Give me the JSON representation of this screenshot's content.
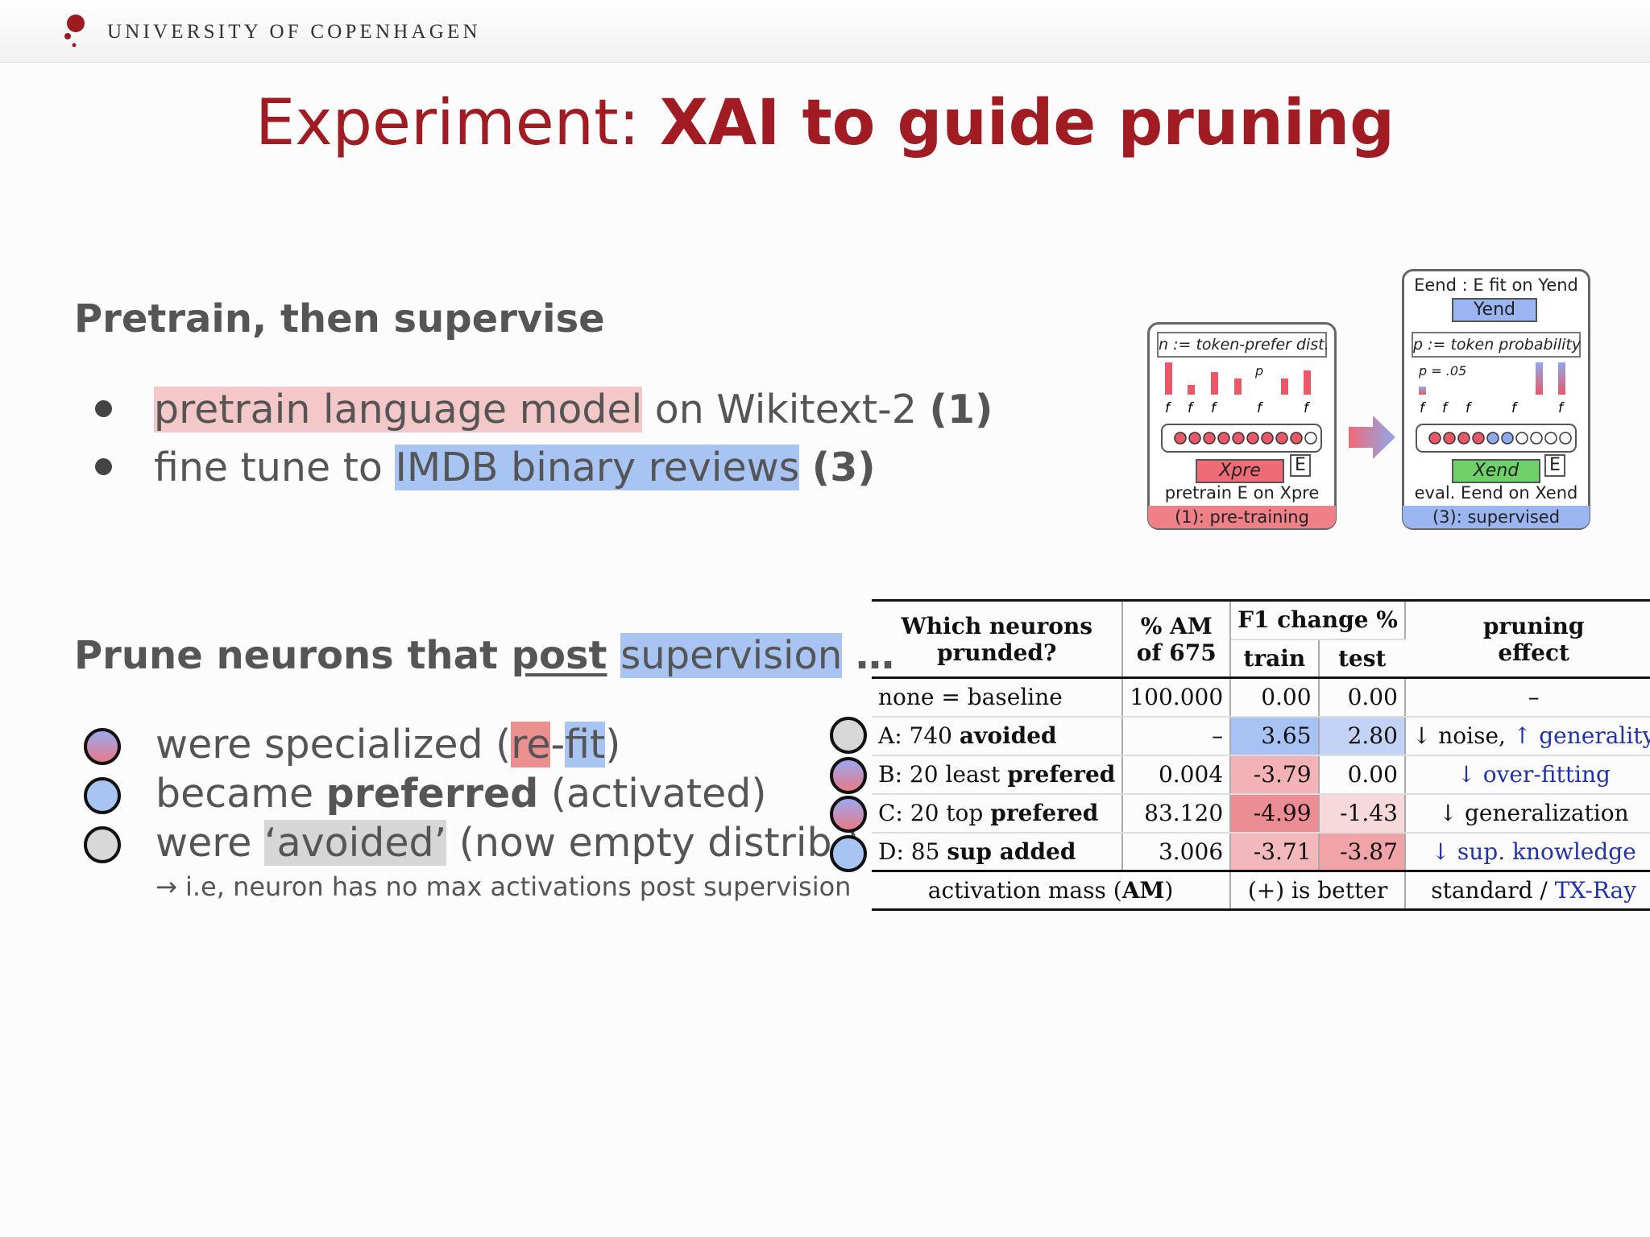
{
  "header": {
    "university": "UNIVERSITY OF COPENHAGEN"
  },
  "title": {
    "plain": "Experiment: ",
    "bold": "XAI to guide pruning"
  },
  "section1": {
    "heading": "Pretrain, then supervise",
    "bullets": [
      {
        "hl": "pretrain language model",
        "rest": " on Wikitext-2 ",
        "ref": "(1)"
      },
      {
        "pre": "fine tune to ",
        "hl": "IMDB binary reviews",
        "rest": " ",
        "ref": "(3)"
      }
    ]
  },
  "section2": {
    "heading_a": "Prune neurons that ",
    "heading_u": "post",
    "heading_sp": " ",
    "heading_hl": "supervision",
    "heading_end": " …",
    "items": [
      {
        "a": "were specialized (",
        "re": "re",
        "dash": "-",
        "fit": "fit",
        "b": ")"
      },
      {
        "a": "became ",
        "bold": "preferred",
        "b": " (activated)"
      },
      {
        "a": "were ",
        "hl": "‘avoided’",
        "b": " (now empty distrib.)"
      }
    ],
    "note": "→ i.e, neuron has no max activations post supervision"
  },
  "diagram": {
    "left": {
      "head": "n := token-prefer dist.",
      "pk": "p",
      "f_labels": [
        "f",
        "f",
        "f",
        "f",
        "f"
      ],
      "x": "Xpre",
      "e": "E",
      "caption": "pretrain E on Xpre",
      "footer": "(1): pre-training"
    },
    "right": {
      "top": "Eend : E fit on Yend",
      "yend": "Yend",
      "head": "p := token probability",
      "p1": "p = .05",
      "f_labels": [
        "f",
        "f",
        "f",
        "f",
        "f"
      ],
      "x": "Xend",
      "e": "E",
      "caption": "eval. Eend on Xend",
      "footer": "(3): supervised"
    }
  },
  "table": {
    "headers": {
      "c1a": "Which neurons",
      "c1b": "prunded?",
      "c2a": "% AM",
      "c2b": "of 675",
      "c3": "F1 change %",
      "c3a": "train",
      "c3b": "test",
      "c4a": "pruning",
      "c4b": "effect"
    },
    "rows": [
      {
        "n1": "none = baseline",
        "n2": "",
        "am": "100.000",
        "train": "0.00",
        "test": "0.00",
        "e1": "–",
        "e2": "",
        "e3": ""
      },
      {
        "n1": "A: 740 ",
        "n2": "avoided",
        "am": "–",
        "train": "3.65",
        "test": "2.80",
        "e1": "↓ noise, ",
        "e2": "↑ generality",
        "e3": ""
      },
      {
        "n1": "B: 20 least ",
        "n2": "prefered",
        "am": "0.004",
        "train": "-3.79",
        "test": "0.00",
        "e1": "",
        "e2": "↓ over-fitting",
        "e3": ""
      },
      {
        "n1": "C: 20 top ",
        "n2": "prefered",
        "am": "83.120",
        "train": "-4.99",
        "test": "-1.43",
        "e1": "↓ generalization",
        "e2": "",
        "e3": ""
      },
      {
        "n1": "D: 85 ",
        "n2": "sup added",
        "am": "3.006",
        "train": "-3.71",
        "test": "-3.87",
        "e1": "",
        "e2": "↓ sup. knowledge",
        "e3": ""
      }
    ],
    "footer": {
      "a": "activation mass (",
      "ab": "AM",
      "ac": ")",
      "b": "(+) is better",
      "c": "standard / ",
      "cb": "TX-Ray"
    },
    "cell_colors": {
      "a_train": "#a9c2f4",
      "a_test": "#c2d3f6",
      "b_train": "#f3b3b6",
      "c_train": "#ec8d94",
      "c_test": "#f8d9db",
      "d_train": "#f3b8bb",
      "d_test": "#f0a4a8"
    }
  },
  "colors": {
    "accent": "#a01c22",
    "blue": "#a7c4f2",
    "red": "#f4c7c8"
  }
}
